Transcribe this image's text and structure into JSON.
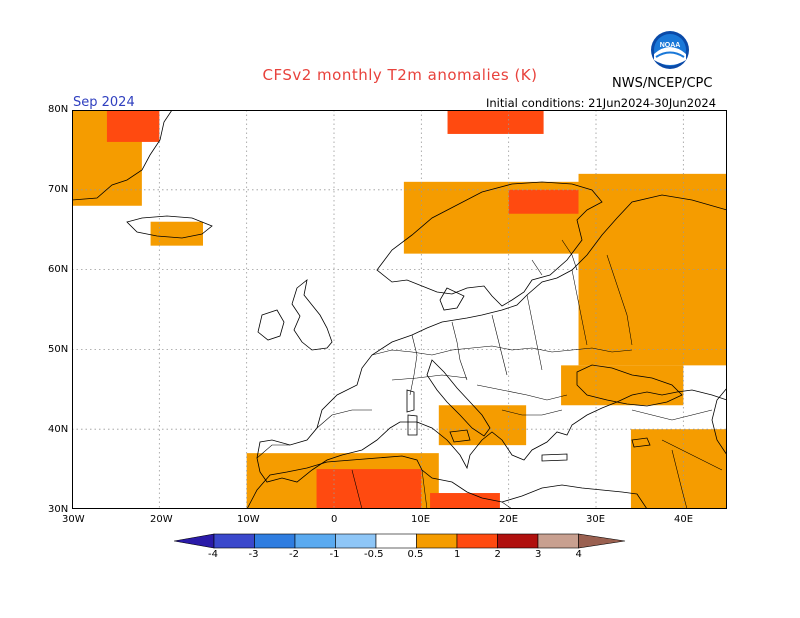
{
  "header": {
    "title": "CFSv2 monthly T2m anomalies (K)",
    "agency": "NWS/NCEP/CPC",
    "month": "Sep 2024",
    "initial_conditions": "Initial conditions: 21Jun2024-30Jun2024"
  },
  "axes": {
    "lat_labels": [
      "80N",
      "70N",
      "60N",
      "50N",
      "40N",
      "30N"
    ],
    "lon_labels": [
      "30W",
      "20W",
      "10W",
      "0",
      "10E",
      "20E",
      "30E",
      "40E"
    ]
  },
  "legend": {
    "boundaries": [
      "-4",
      "-3",
      "-2",
      "-1",
      "-0.5",
      "0.5",
      "1",
      "2",
      "3",
      "4"
    ],
    "colors": [
      "#2a1aa8",
      "#3a48cc",
      "#2f7de0",
      "#5aaaf0",
      "#8ec6f7",
      "#ffffff",
      "#f59c00",
      "#ff4a10",
      "#b0100e",
      "#c8a090",
      "#9a6050"
    ]
  },
  "chart_data": {
    "type": "heatmap",
    "title": "CFSv2 monthly T2m anomalies (K)",
    "variable": "T2m anomaly (K)",
    "valid_month": "Sep 2024",
    "lon_range": [
      -30,
      45
    ],
    "lat_range": [
      30,
      80
    ],
    "regions": [
      {
        "area": "Greenland east coast",
        "class": "0.5 to 1",
        "lon": [
          -30,
          -22
        ],
        "lat": [
          68,
          80
        ]
      },
      {
        "area": "Greenland east coast north",
        "class": "1 to 2",
        "lon": [
          -26,
          -20
        ],
        "lat": [
          76,
          80
        ]
      },
      {
        "area": "Svalbard",
        "class": "1 to 2",
        "lon": [
          13,
          24
        ],
        "lat": [
          77,
          80
        ]
      },
      {
        "area": "Iceland",
        "class": "0.5 to 1",
        "lon": [
          -21,
          -15
        ],
        "lat": [
          63,
          66
        ]
      },
      {
        "area": "Scandinavia north / Finland",
        "class": "0.5 to 1",
        "lon": [
          8,
          32
        ],
        "lat": [
          62,
          71
        ]
      },
      {
        "area": "Northern Finland",
        "class": "1 to 2",
        "lon": [
          20,
          28
        ],
        "lat": [
          67,
          70
        ]
      },
      {
        "area": "Western Russia",
        "class": "0.5 to 1",
        "lon": [
          28,
          45
        ],
        "lat": [
          48,
          72
        ]
      },
      {
        "area": "Black Sea region",
        "class": "0.5 to 1",
        "lon": [
          26,
          40
        ],
        "lat": [
          43,
          48
        ]
      },
      {
        "area": "Turkey / Middle East",
        "class": "0.5 to 1",
        "lon": [
          34,
          45
        ],
        "lat": [
          30,
          40
        ]
      },
      {
        "area": "North Africa",
        "class": "0.5 to 1",
        "lon": [
          -10,
          12
        ],
        "lat": [
          30,
          37
        ]
      },
      {
        "area": "Algeria / Tunisia interior",
        "class": "1 to 2",
        "lon": [
          -2,
          10
        ],
        "lat": [
          30,
          35
        ]
      },
      {
        "area": "Libya coast",
        "class": "1 to 2",
        "lon": [
          11,
          19
        ],
        "lat": [
          30,
          32
        ]
      },
      {
        "area": "Southern Italy / Balkans",
        "class": "0.5 to 1",
        "lon": [
          12,
          22
        ],
        "lat": [
          38,
          43
        ]
      }
    ]
  }
}
